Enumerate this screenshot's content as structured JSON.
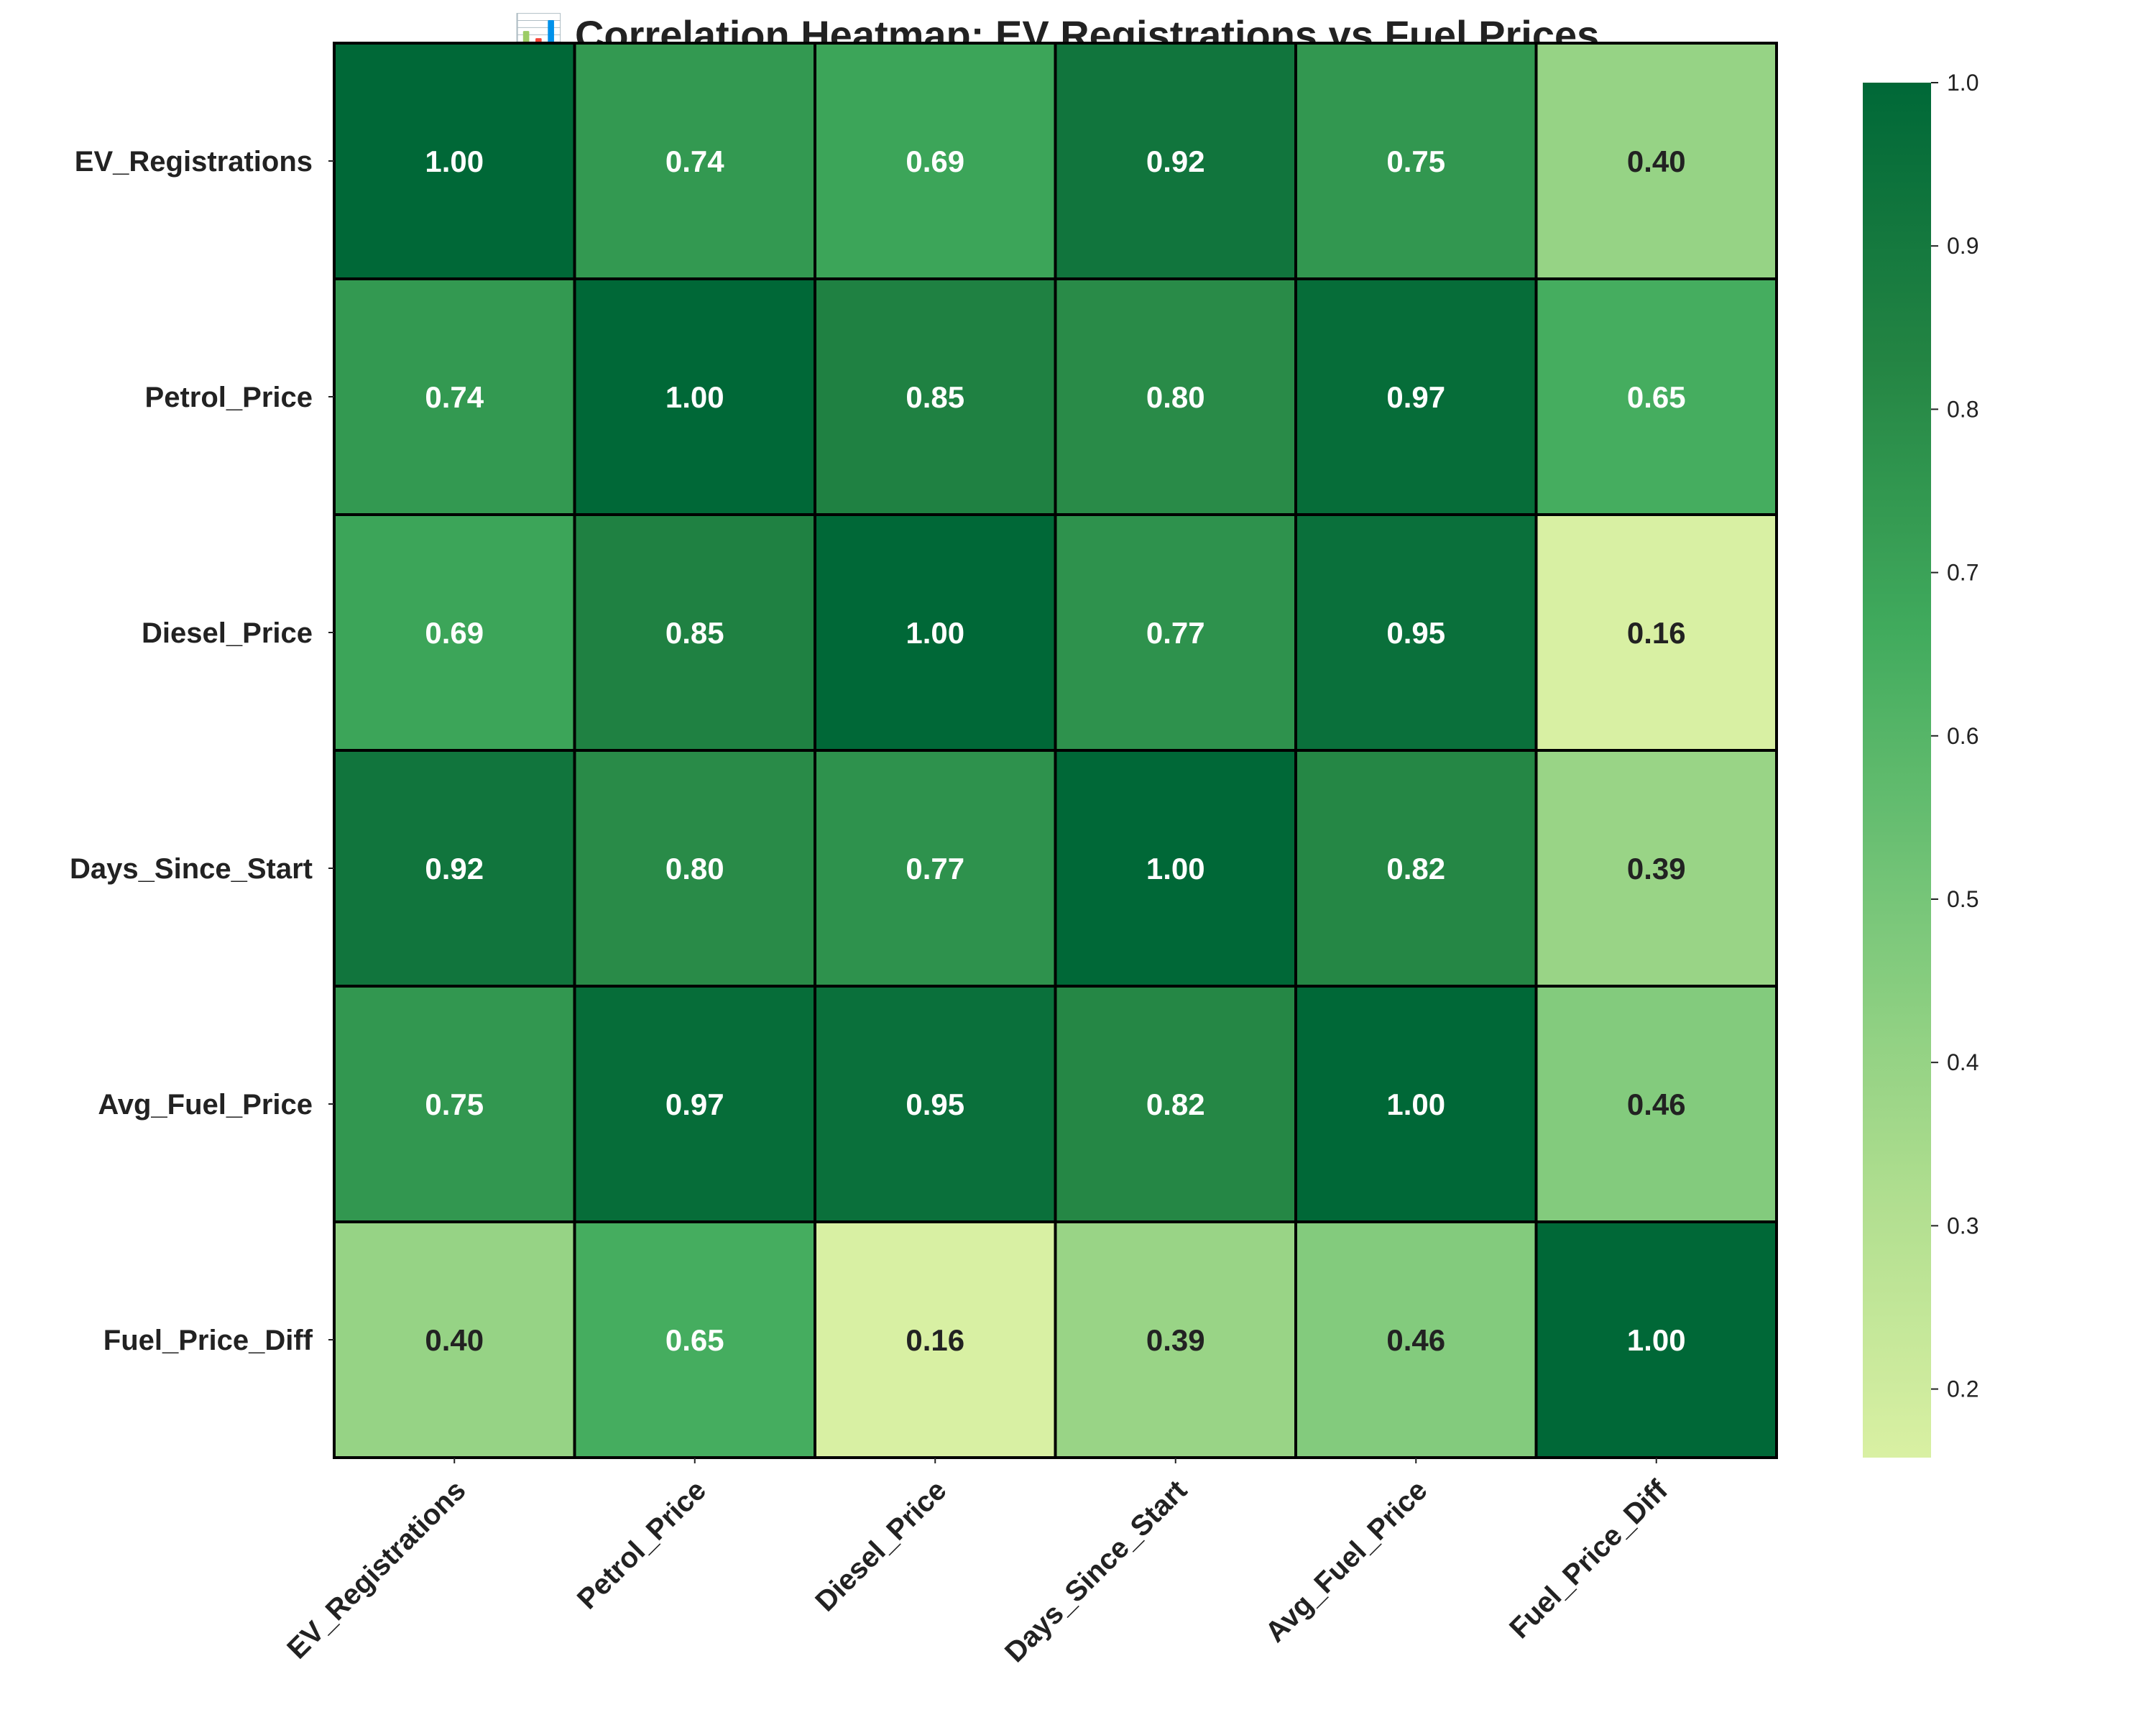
{
  "chart_data": {
    "type": "heatmap",
    "title": "📊 Correlation Heatmap: EV Registrations vs Fuel Prices",
    "row_labels": [
      "EV_Registrations",
      "Petrol_Price",
      "Diesel_Price",
      "Days_Since_Start",
      "Avg_Fuel_Price",
      "Fuel_Price_Diff"
    ],
    "col_labels": [
      "EV_Registrations",
      "Petrol_Price",
      "Diesel_Price",
      "Days_Since_Start",
      "Avg_Fuel_Price",
      "Fuel_Price_Diff"
    ],
    "values": [
      [
        1.0,
        0.74,
        0.69,
        0.92,
        0.75,
        0.4
      ],
      [
        0.74,
        1.0,
        0.85,
        0.8,
        0.97,
        0.65
      ],
      [
        0.69,
        0.85,
        1.0,
        0.77,
        0.95,
        0.16
      ],
      [
        0.92,
        0.8,
        0.77,
        1.0,
        0.82,
        0.39
      ],
      [
        0.75,
        0.97,
        0.95,
        0.82,
        1.0,
        0.46
      ],
      [
        0.4,
        0.65,
        0.16,
        0.39,
        0.46,
        1.0
      ]
    ],
    "value_format": "0.00",
    "colormap": "YlGn",
    "colorbar": {
      "range": [
        0.158,
        1.0
      ],
      "ticks": [
        0.2,
        0.3,
        0.4,
        0.5,
        0.6,
        0.7,
        0.8,
        0.9,
        1.0
      ],
      "tick_labels": [
        "0.2",
        "0.3",
        "0.4",
        "0.5",
        "0.6",
        "0.7",
        "0.8",
        "0.9",
        "1.0"
      ],
      "placement": "right"
    },
    "colors": {
      "stops": [
        "#d9f0a3",
        "#addd8e",
        "#78c679",
        "#41ab5d",
        "#238443",
        "#006837"
      ],
      "cell_border": "#000000",
      "text_dark": "#222222",
      "text_light": "#ffffff"
    }
  }
}
